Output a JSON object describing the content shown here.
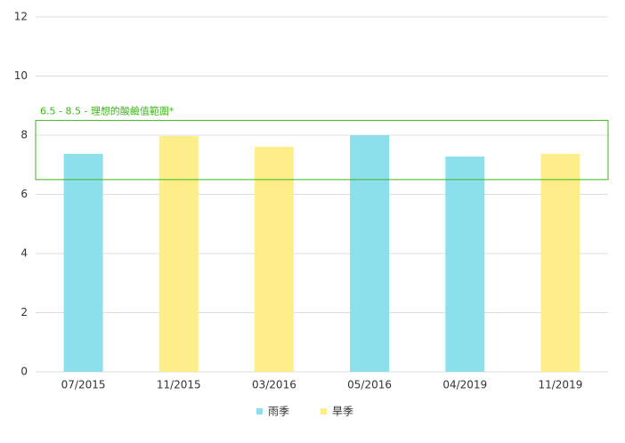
{
  "chart_data": {
    "type": "bar",
    "categories": [
      "07/2015",
      "11/2015",
      "03/2016",
      "05/2016",
      "04/2019",
      "11/2019"
    ],
    "series": [
      {
        "name": "雨季",
        "color": "#8ce0ec",
        "values": [
          7.37,
          null,
          null,
          8.0,
          7.28,
          null
        ]
      },
      {
        "name": "旱季",
        "color": "#fdee8a",
        "values": [
          null,
          7.97,
          7.61,
          null,
          null,
          7.37
        ]
      }
    ],
    "ylim": [
      0,
      12
    ],
    "yticks": [
      0,
      2,
      4,
      6,
      8,
      10,
      12
    ],
    "grid": true,
    "band": [
      6.5,
      8.5
    ],
    "band_color": "#3cb51a",
    "annotation": "6.5 - 8.5 - 理想的酸鹼值範圍*",
    "legend": "bottom"
  }
}
